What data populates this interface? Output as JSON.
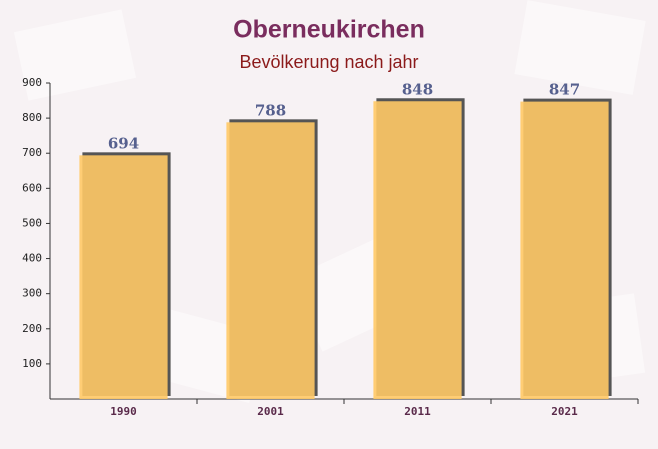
{
  "chart_data": {
    "type": "bar",
    "title": "Oberneukirchen",
    "subtitle": "Bevölkerung nach jahr",
    "categories": [
      "1990",
      "2001",
      "2011",
      "2021"
    ],
    "values": [
      694,
      788,
      848,
      847
    ],
    "color": "#ffc966",
    "ylim": [
      0,
      900
    ],
    "yticks": [
      100,
      200,
      300,
      400,
      500,
      600,
      700,
      800,
      900
    ],
    "grid": false
  }
}
